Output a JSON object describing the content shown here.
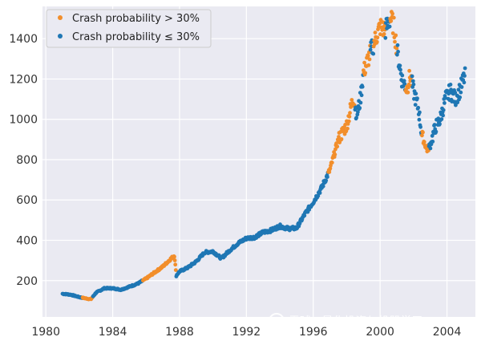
{
  "colors": {
    "background": "#eaeaf2",
    "grid": "#ffffff",
    "series_gt": "#f28e2b",
    "series_le": "#1f77b4"
  },
  "watermark": {
    "icon": "wechat-icon",
    "text": "雪球 · 量化投资与机器学习"
  },
  "chart_data": {
    "type": "scatter",
    "title": "",
    "xlabel": "",
    "ylabel": "",
    "xlim": [
      1979.8,
      2005.7
    ],
    "ylim": [
      20,
      1560
    ],
    "xticks": [
      1980,
      1984,
      1988,
      1992,
      1996,
      2000,
      2004
    ],
    "yticks": [
      200,
      400,
      600,
      800,
      1000,
      1200,
      1400
    ],
    "grid": true,
    "legend": {
      "placement": "top-left",
      "entries": [
        {
          "name": "Crash probability > 30%",
          "color": "#f28e2b"
        },
        {
          "name": "Crash probability ≤ 30%",
          "color": "#1f77b4"
        }
      ]
    },
    "series": [
      {
        "name": "Crash probability > 30%",
        "color": "#f28e2b",
        "segments": [
          [
            1982.2,
            1982.8
          ],
          [
            1985.8,
            1987.8
          ],
          [
            1996.9,
            1998.5
          ],
          [
            1999.0,
            1999.4
          ],
          [
            1999.6,
            2000.3
          ],
          [
            2000.6,
            2001.0
          ],
          [
            2001.5,
            2001.9
          ],
          [
            2002.5,
            2002.9
          ]
        ]
      },
      {
        "name": "Crash probability ≤ 30%",
        "color": "#1f77b4"
      }
    ],
    "price_path": [
      [
        1981.0,
        135
      ],
      [
        1981.5,
        130
      ],
      [
        1982.0,
        118
      ],
      [
        1982.5,
        110
      ],
      [
        1982.7,
        108
      ],
      [
        1983.0,
        140
      ],
      [
        1983.5,
        162
      ],
      [
        1984.0,
        162
      ],
      [
        1984.5,
        155
      ],
      [
        1985.0,
        170
      ],
      [
        1985.5,
        185
      ],
      [
        1986.0,
        210
      ],
      [
        1986.5,
        240
      ],
      [
        1987.0,
        270
      ],
      [
        1987.5,
        310
      ],
      [
        1987.7,
        325
      ],
      [
        1987.8,
        225
      ],
      [
        1988.0,
        245
      ],
      [
        1988.5,
        265
      ],
      [
        1989.0,
        295
      ],
      [
        1989.5,
        340
      ],
      [
        1990.0,
        345
      ],
      [
        1990.5,
        310
      ],
      [
        1991.0,
        350
      ],
      [
        1991.5,
        385
      ],
      [
        1992.0,
        410
      ],
      [
        1992.5,
        415
      ],
      [
        1993.0,
        440
      ],
      [
        1993.5,
        450
      ],
      [
        1994.0,
        470
      ],
      [
        1994.5,
        458
      ],
      [
        1995.0,
        460
      ],
      [
        1995.5,
        530
      ],
      [
        1996.0,
        590
      ],
      [
        1996.5,
        660
      ],
      [
        1997.0,
        750
      ],
      [
        1997.5,
        900
      ],
      [
        1998.0,
        970
      ],
      [
        1998.4,
        1110
      ],
      [
        1998.6,
        1020
      ],
      [
        1998.8,
        1090
      ],
      [
        1999.0,
        1230
      ],
      [
        1999.5,
        1350
      ],
      [
        2000.0,
        1460
      ],
      [
        2000.3,
        1440
      ],
      [
        2000.6,
        1500
      ],
      [
        2000.8,
        1470
      ],
      [
        2001.0,
        1350
      ],
      [
        2001.3,
        1200
      ],
      [
        2001.6,
        1150
      ],
      [
        2001.8,
        1220
      ],
      [
        2002.0,
        1140
      ],
      [
        2002.3,
        1050
      ],
      [
        2002.5,
        920
      ],
      [
        2002.8,
        850
      ],
      [
        2003.0,
        870
      ],
      [
        2003.3,
        960
      ],
      [
        2003.6,
        1000
      ],
      [
        2003.9,
        1100
      ],
      [
        2004.2,
        1140
      ],
      [
        2004.5,
        1100
      ],
      [
        2004.8,
        1150
      ],
      [
        2005.0,
        1200
      ],
      [
        2005.1,
        1215
      ]
    ]
  }
}
